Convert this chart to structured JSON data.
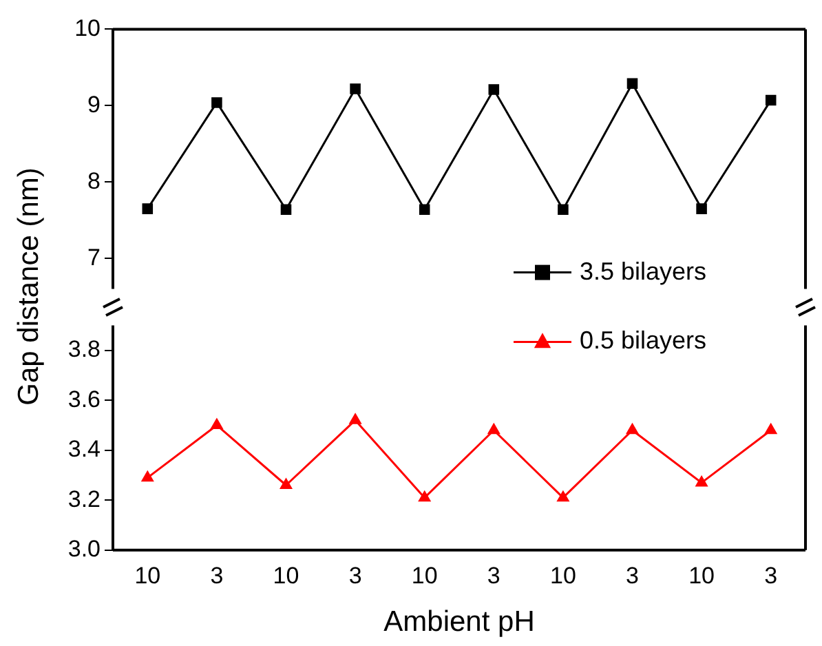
{
  "chart_data": [
    {
      "type": "line",
      "ylabel": "Gap distance (nm)",
      "categories": [
        "10",
        "3",
        "10",
        "3",
        "10",
        "3",
        "10",
        "3",
        "10",
        "3"
      ],
      "series": [
        {
          "name": "3.5 bilayers",
          "color": "#000000",
          "marker": "square",
          "values": [
            7.65,
            9.04,
            7.64,
            9.22,
            7.64,
            9.21,
            7.64,
            9.29,
            7.65,
            9.07
          ]
        }
      ],
      "ylim": [
        6.6,
        10
      ],
      "yticks": [
        7,
        8,
        9,
        10
      ],
      "tick_labels": "y",
      "legend": "bottom right",
      "grid": false
    },
    {
      "type": "line",
      "xlabel": "Ambient pH",
      "categories": [
        "10",
        "3",
        "10",
        "3",
        "10",
        "3",
        "10",
        "3",
        "10",
        "3"
      ],
      "series": [
        {
          "name": "0.5 bilayers",
          "color": "#ff0000",
          "marker": "triangle",
          "values": [
            3.29,
            3.5,
            3.26,
            3.52,
            3.21,
            3.48,
            3.21,
            3.48,
            3.27,
            3.48
          ]
        }
      ],
      "ylim": [
        3.0,
        3.9
      ],
      "yticks": [
        {
          "value": 3.0,
          "label": "3.0"
        },
        {
          "value": 3.2,
          "label": "3.2"
        },
        {
          "value": 3.4,
          "label": "3.4"
        },
        {
          "value": 3.6,
          "label": "3.6"
        },
        {
          "value": 3.8,
          "label": "3.8"
        }
      ],
      "legend": "top right",
      "grid": false
    }
  ]
}
